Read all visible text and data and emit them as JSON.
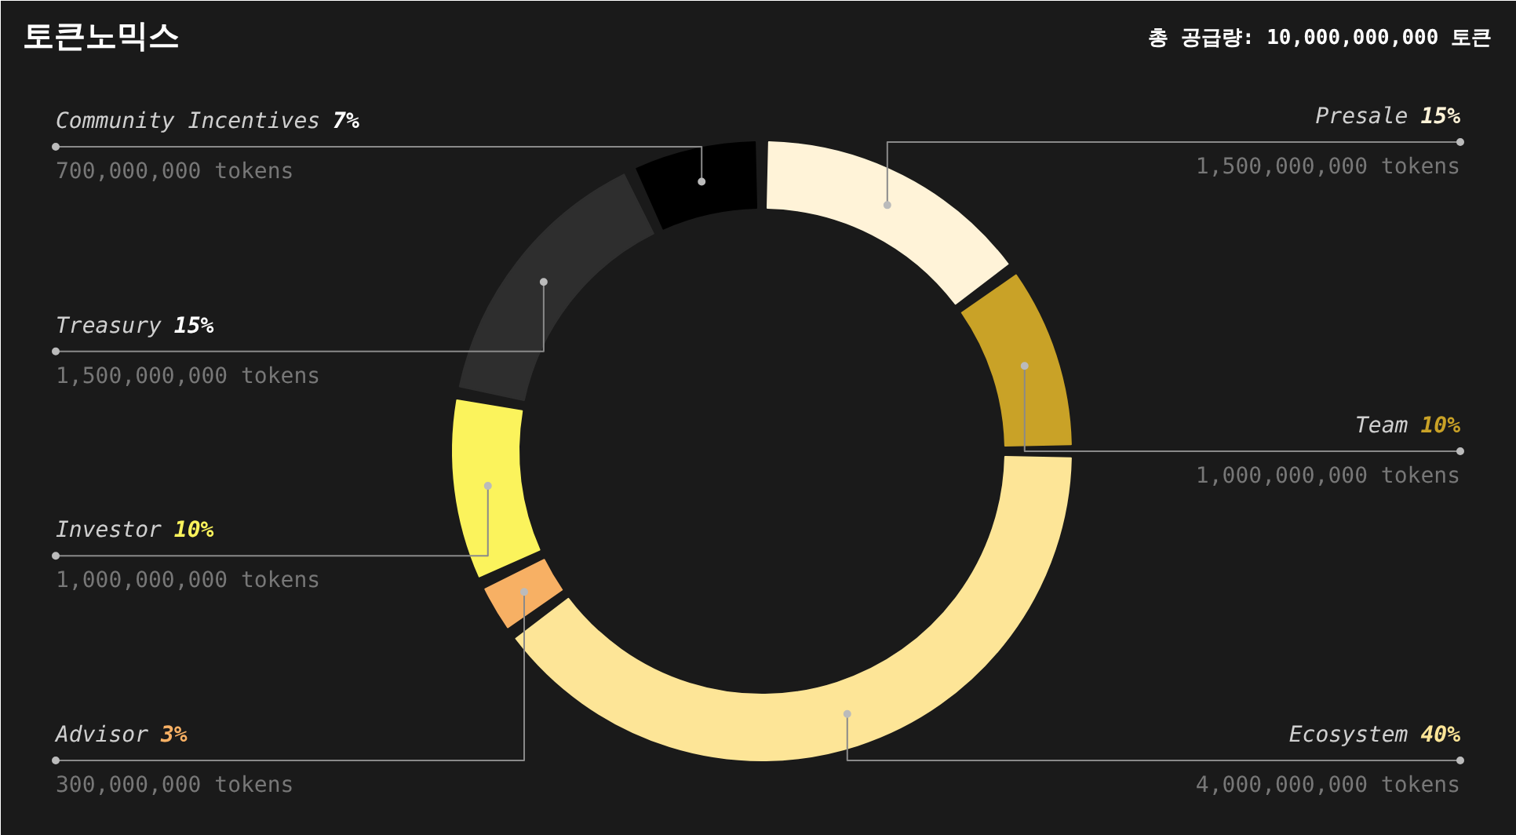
{
  "chart_data": {
    "type": "donut",
    "title": "토큰노믹스",
    "subtitle": "총 공급량: 10,000,000,000 토큰",
    "categories": [
      "Presale",
      "Team",
      "Ecosystem",
      "Advisor",
      "Investor",
      "Treasury",
      "Community Incentives"
    ],
    "values": [
      15,
      10,
      40,
      3,
      10,
      15,
      7
    ],
    "colors": [
      "#fff3d8",
      "#c9a227",
      "#fde597",
      "#f7b064",
      "#fbf35c",
      "#2e2e2e",
      "#000000"
    ],
    "value_labels": [
      "15%",
      "10%",
      "40%",
      "3%",
      "10%",
      "15%",
      "7%"
    ],
    "annotations": [
      "1,500,000,000 tokens",
      "1,000,000,000 tokens",
      "4,000,000,000 tokens",
      "300,000,000 tokens",
      "1,000,000,000 tokens",
      "1,500,000,000 tokens",
      "700,000,000 tokens"
    ]
  }
}
